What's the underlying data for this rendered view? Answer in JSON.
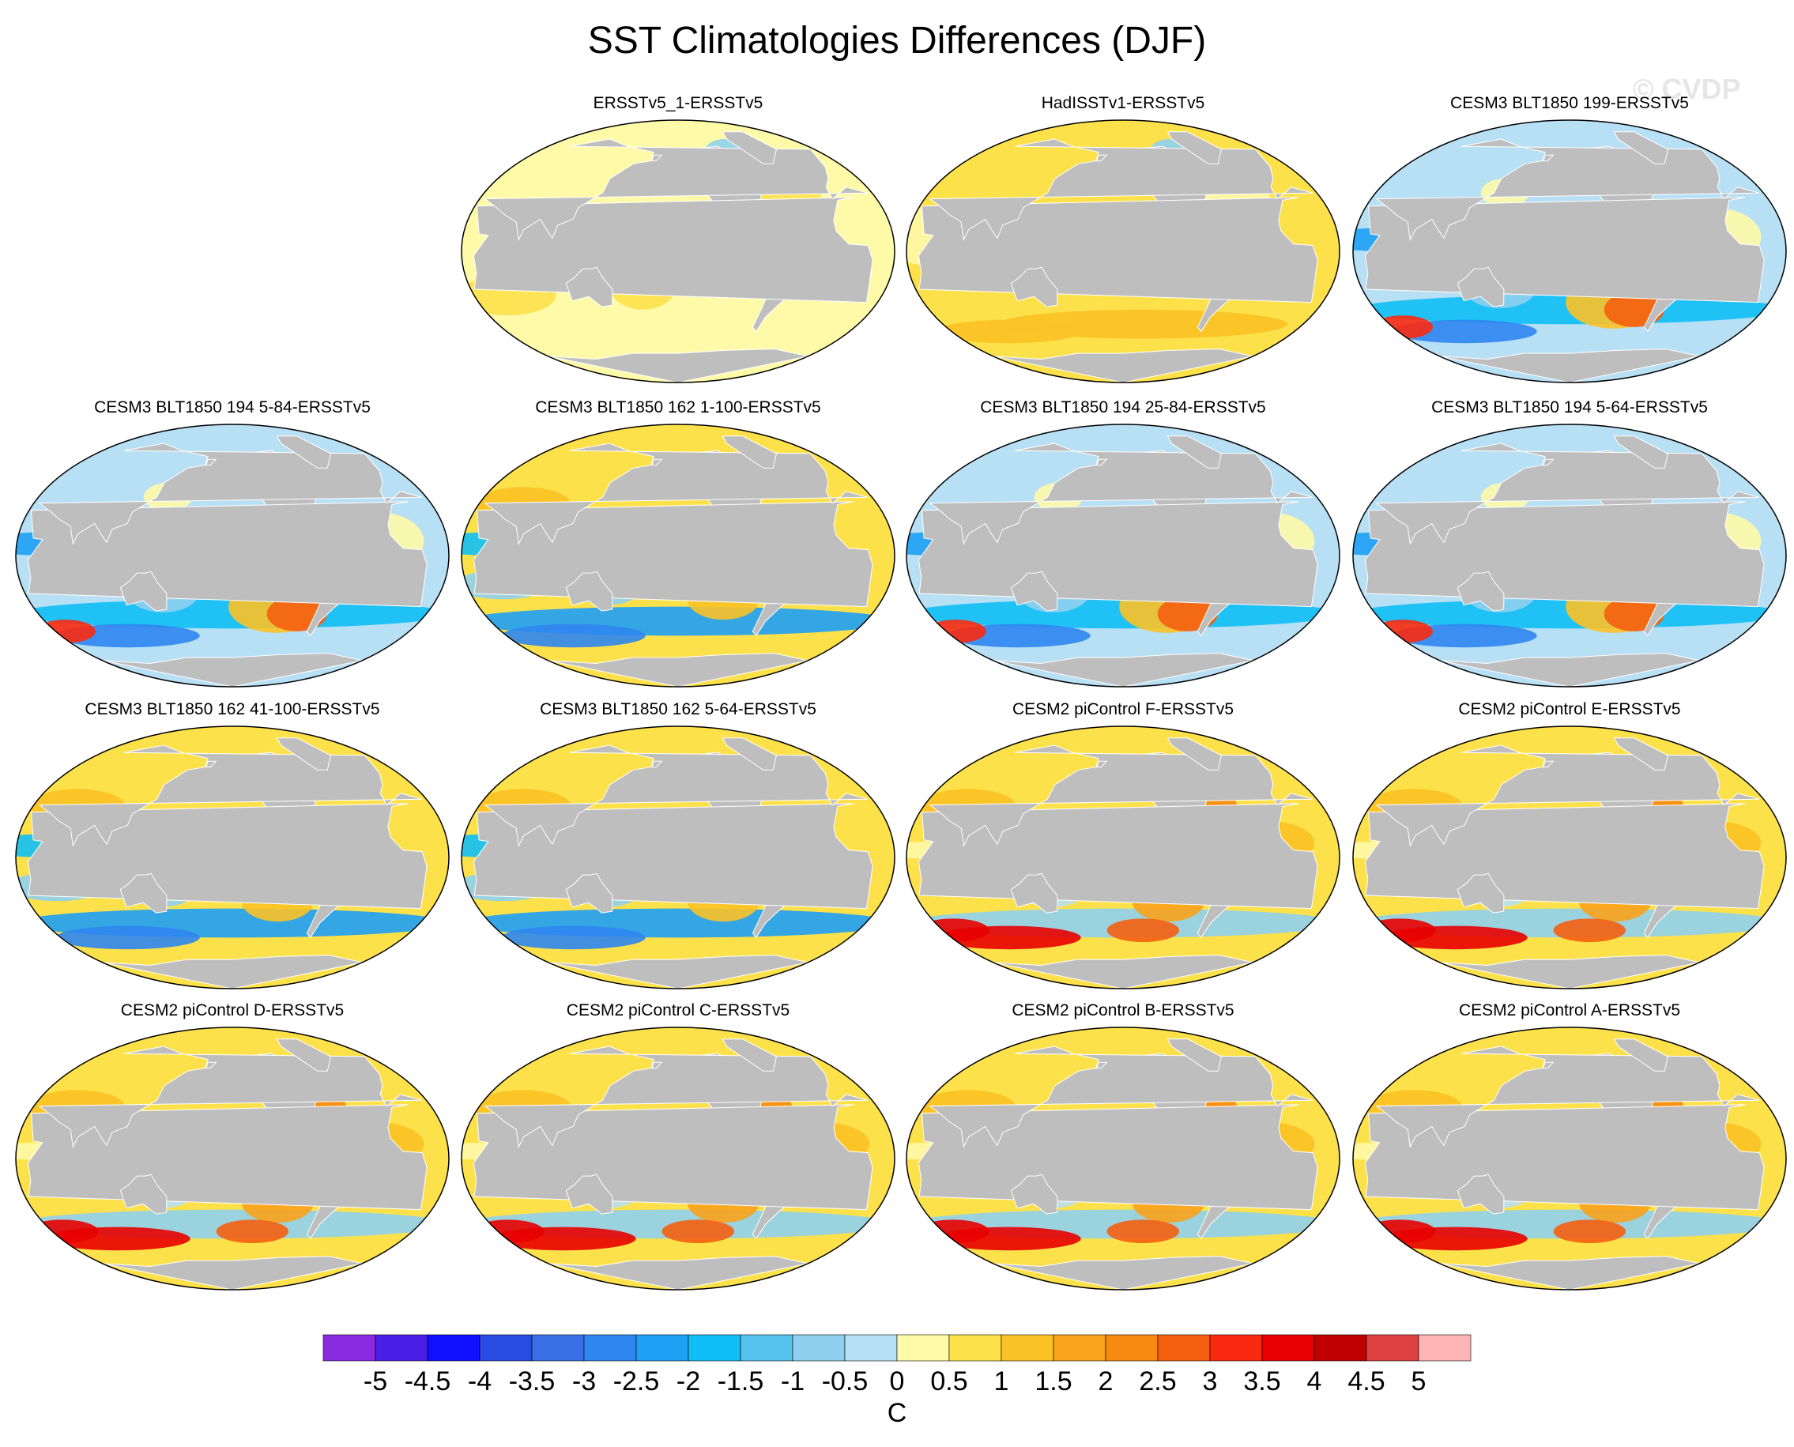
{
  "title": "SST Climatologies Differences (DJF)",
  "watermark": "© CVDP",
  "colorbar": {
    "unit": "C",
    "labels": [
      "-5",
      "-4.5",
      "-4",
      "-3.5",
      "-3",
      "-2.5",
      "-2",
      "-1.5",
      "-1",
      "-0.5",
      "0",
      "0.5",
      "1",
      "1.5",
      "2",
      "2.5",
      "3",
      "3.5",
      "4",
      "4.5",
      "5"
    ],
    "colors": [
      "#8a2be2",
      "#4b1ee6",
      "#1010ff",
      "#2a4be0",
      "#3a6fe6",
      "#2f86f0",
      "#1ea0f5",
      "#10bff5",
      "#55c3ee",
      "#8fd0ee",
      "#b8e0f4",
      "#fffaa8",
      "#fde14a",
      "#fbc225",
      "#f9a21b",
      "#f78a10",
      "#f55f10",
      "#fa2a10",
      "#e80000",
      "#c00000",
      "#dc4040",
      "#fdb4b4"
    ]
  },
  "panels": [
    {
      "title": "ERSSTv5_1-ERSSTv5",
      "scheme": "obs1"
    },
    {
      "title": "HadISSTv1-ERSSTv5",
      "scheme": "obs2"
    },
    {
      "title": "CESM3 BLT1850 199-ERSSTv5",
      "scheme": "cool"
    },
    {
      "title": "CESM3 BLT1850 194 5-84-ERSSTv5",
      "scheme": "cool"
    },
    {
      "title": "CESM3 BLT1850 162 1-100-ERSSTv5",
      "scheme": "mixed"
    },
    {
      "title": "CESM3 BLT1850 194 25-84-ERSSTv5",
      "scheme": "cool"
    },
    {
      "title": "CESM3 BLT1850 194 5-64-ERSSTv5",
      "scheme": "cool"
    },
    {
      "title": "CESM3 BLT1850 162 41-100-ERSSTv5",
      "scheme": "mixed"
    },
    {
      "title": "CESM3 BLT1850 162 5-64-ERSSTv5",
      "scheme": "mixed"
    },
    {
      "title": "CESM2 piControl F-ERSSTv5",
      "scheme": "warm"
    },
    {
      "title": "CESM2 piControl E-ERSSTv5",
      "scheme": "warm"
    },
    {
      "title": "CESM2 piControl D-ERSSTv5",
      "scheme": "warm"
    },
    {
      "title": "CESM2 piControl C-ERSSTv5",
      "scheme": "warm"
    },
    {
      "title": "CESM2 piControl B-ERSSTv5",
      "scheme": "warm"
    },
    {
      "title": "CESM2 piControl A-ERSSTv5",
      "scheme": "warm"
    }
  ]
}
